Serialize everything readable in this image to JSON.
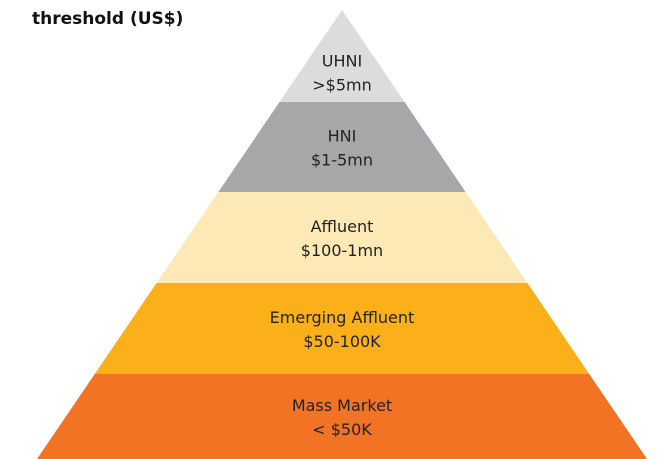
{
  "header": {
    "title": "threshold (US$)"
  },
  "tiers": [
    {
      "name": "UHNI",
      "range": ">$5mn",
      "color": "#dcdcdc"
    },
    {
      "name": "HNI",
      "range": "$1-5mn",
      "color": "#a6a7a9"
    },
    {
      "name": "Affluent",
      "range": "$100-1mn",
      "color": "#fde9b5"
    },
    {
      "name": "Emerging Affluent",
      "range": "$50-100K",
      "color": "#fbb01a"
    },
    {
      "name": "Mass Market",
      "range": "< $50K",
      "color": "#f37325"
    }
  ]
}
